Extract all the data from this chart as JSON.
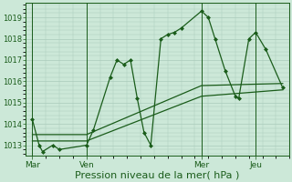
{
  "background_color": "#cce8d8",
  "grid_color": "#aacbbb",
  "line_color": "#1a5c1a",
  "marker_color": "#1a5c1a",
  "xlabel": "Pression niveau de la mer( hPa )",
  "xlabel_fontsize": 8,
  "ylim": [
    1012.5,
    1019.7
  ],
  "yticks": [
    1013,
    1014,
    1015,
    1016,
    1017,
    1018,
    1019
  ],
  "ytick_fontsize": 6,
  "xtick_labels": [
    "Mar",
    "Ven",
    "Mer",
    "Jeu"
  ],
  "xtick_positions": [
    2,
    18,
    52,
    68
  ],
  "vline_positions": [
    2,
    18,
    52,
    68
  ],
  "series1_x": [
    2,
    4,
    5,
    8,
    10,
    18,
    20,
    25,
    27,
    29,
    31,
    33,
    35,
    37,
    40,
    42,
    44,
    46,
    52,
    54,
    56,
    59,
    62,
    63,
    66,
    68,
    71,
    76
  ],
  "series1_y": [
    1014.2,
    1013.0,
    1012.7,
    1013.0,
    1012.8,
    1013.0,
    1013.7,
    1016.2,
    1017.0,
    1016.8,
    1017.0,
    1015.2,
    1013.6,
    1013.0,
    1018.0,
    1018.2,
    1018.3,
    1018.5,
    1019.3,
    1019.0,
    1018.0,
    1016.5,
    1015.3,
    1015.2,
    1018.0,
    1018.3,
    1017.5,
    1015.7
  ],
  "series2_x": [
    2,
    18,
    52,
    76
  ],
  "series2_y": [
    1013.2,
    1013.2,
    1015.3,
    1015.6
  ],
  "series3_x": [
    2,
    18,
    52,
    76
  ],
  "series3_y": [
    1013.5,
    1013.5,
    1015.8,
    1015.9
  ],
  "xlim": [
    0,
    78
  ],
  "figsize": [
    3.2,
    2.0
  ],
  "dpi": 100
}
